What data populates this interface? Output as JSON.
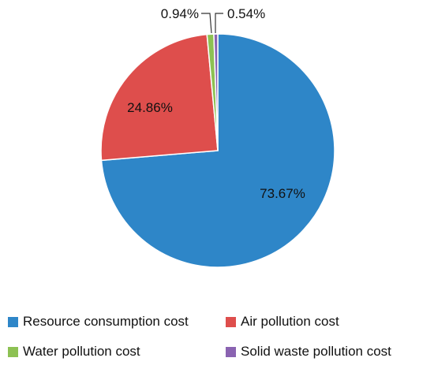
{
  "chart_data": {
    "type": "pie",
    "title": "",
    "start_angle_deg": 0,
    "direction": "clockwise",
    "slices": [
      {
        "name": "Resource consumption cost",
        "value": 73.67,
        "label": "73.67%",
        "color": "#2E86C8"
      },
      {
        "name": "Air pollution cost",
        "value": 24.86,
        "label": "24.86%",
        "color": "#DE4E4C"
      },
      {
        "name": "Water pollution cost",
        "value": 0.94,
        "label": "0.94%",
        "color": "#8DC153"
      },
      {
        "name": "Solid waste pollution cost",
        "value": 0.54,
        "label": "0.54%",
        "color": "#8A63B1"
      }
    ],
    "legend": {
      "position": "bottom"
    }
  }
}
